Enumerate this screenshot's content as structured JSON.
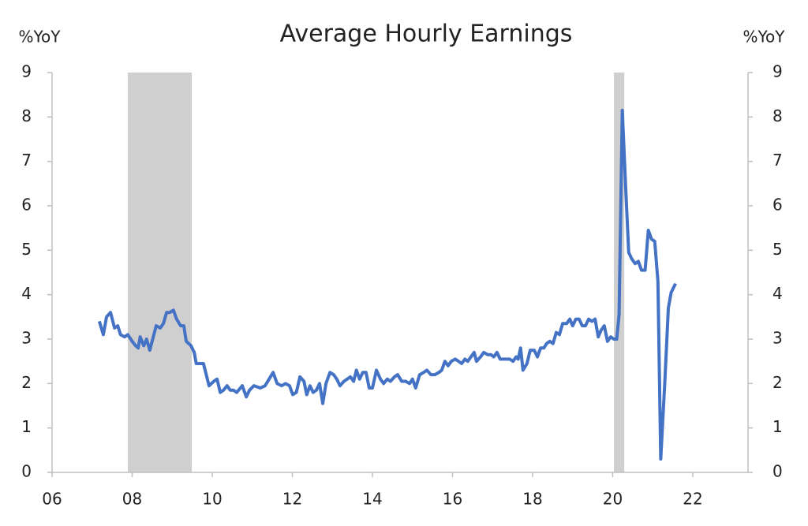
{
  "chart_data": {
    "type": "line",
    "title": "Average Hourly Earnings",
    "y_label": "%YoY",
    "y2_label": "%YoY",
    "xlim": [
      2006,
      2023.38
    ],
    "xticks": [
      {
        "value": 2006,
        "label": "06"
      },
      {
        "value": 2008,
        "label": "08"
      },
      {
        "value": 2010,
        "label": "10"
      },
      {
        "value": 2012,
        "label": "12"
      },
      {
        "value": 2014,
        "label": "14"
      },
      {
        "value": 2016,
        "label": "16"
      },
      {
        "value": 2018,
        "label": "18"
      },
      {
        "value": 2020,
        "label": "20"
      },
      {
        "value": 2022,
        "label": "22"
      }
    ],
    "ylim": [
      0,
      9
    ],
    "yticks": [
      0,
      1,
      2,
      3,
      4,
      5,
      6,
      7,
      8,
      9
    ],
    "y2lim": [
      0,
      9
    ],
    "y2ticks": [
      0,
      1,
      2,
      3,
      4,
      5,
      6,
      7,
      8,
      9
    ],
    "shaded_regions": [
      [
        2007.89,
        2009.49
      ],
      [
        2020.03,
        2020.29
      ]
    ],
    "shaded_color": "#d0cfcf",
    "x": [
      2007.18,
      2007.28,
      2007.36,
      2007.46,
      2007.56,
      2007.64,
      2007.71,
      2007.81,
      2007.89,
      2008.0,
      2008.09,
      2008.15,
      2008.2,
      2008.29,
      2008.36,
      2008.44,
      2008.6,
      2008.7,
      2008.78,
      2008.86,
      2008.94,
      2009.03,
      2009.11,
      2009.21,
      2009.29,
      2009.35,
      2009.47,
      2009.55,
      2009.6,
      2009.78,
      2009.92,
      2010.04,
      2010.12,
      2010.2,
      2010.28,
      2010.37,
      2010.45,
      2010.53,
      2010.61,
      2010.75,
      2010.85,
      2010.93,
      2011.04,
      2011.2,
      2011.32,
      2011.42,
      2011.52,
      2011.62,
      2011.73,
      2011.83,
      2011.93,
      2012.01,
      2012.1,
      2012.19,
      2012.29,
      2012.36,
      2012.44,
      2012.52,
      2012.6,
      2012.68,
      2012.76,
      2012.84,
      2012.94,
      2013.03,
      2013.11,
      2013.19,
      2013.29,
      2013.37,
      2013.45,
      2013.53,
      2013.6,
      2013.68,
      2013.76,
      2013.84,
      2013.92,
      2014.0,
      2014.1,
      2014.2,
      2014.28,
      2014.37,
      2014.45,
      2014.55,
      2014.63,
      2014.73,
      2014.83,
      2014.93,
      2015.0,
      2015.08,
      2015.18,
      2015.28,
      2015.36,
      2015.46,
      2015.56,
      2015.66,
      2015.73,
      2015.81,
      2015.89,
      2015.97,
      2016.07,
      2016.15,
      2016.23,
      2016.31,
      2016.38,
      2016.46,
      2016.54,
      2016.6,
      2016.7,
      2016.78,
      2016.88,
      2016.96,
      2017.03,
      2017.11,
      2017.19,
      2017.33,
      2017.43,
      2017.51,
      2017.59,
      2017.64,
      2017.7,
      2017.76,
      2017.86,
      2017.94,
      2018.04,
      2018.12,
      2018.2,
      2018.28,
      2018.35,
      2018.43,
      2018.51,
      2018.59,
      2018.67,
      2018.75,
      2018.85,
      2018.93,
      2019.0,
      2019.08,
      2019.16,
      2019.24,
      2019.32,
      2019.4,
      2019.48,
      2019.56,
      2019.64,
      2019.71,
      2019.79,
      2019.87,
      2019.95,
      2020.03,
      2020.1,
      2020.16,
      2020.24,
      2020.32,
      2020.4,
      2020.48,
      2020.56,
      2020.64,
      2020.72,
      2020.81,
      2020.89,
      2020.97,
      2021.05,
      2021.13,
      2021.2,
      2021.3,
      2021.39,
      2021.46,
      2021.57
    ],
    "series": [
      {
        "color": "#4472c4",
        "values": [
          3.4,
          3.1,
          3.5,
          3.6,
          3.25,
          3.3,
          3.1,
          3.05,
          3.1,
          2.95,
          2.85,
          2.8,
          3.05,
          2.85,
          3.0,
          2.75,
          3.3,
          3.25,
          3.35,
          3.6,
          3.6,
          3.65,
          3.45,
          3.3,
          3.3,
          2.95,
          2.85,
          2.7,
          2.45,
          2.45,
          1.95,
          2.05,
          2.1,
          1.8,
          1.85,
          1.95,
          1.85,
          1.85,
          1.8,
          1.95,
          1.7,
          1.85,
          1.95,
          1.9,
          1.95,
          2.1,
          2.25,
          2.0,
          1.95,
          2.0,
          1.95,
          1.75,
          1.8,
          2.15,
          2.05,
          1.75,
          1.95,
          1.8,
          1.85,
          2.0,
          1.55,
          2.0,
          2.25,
          2.2,
          2.1,
          1.95,
          2.05,
          2.1,
          2.15,
          2.05,
          2.3,
          2.1,
          2.25,
          2.25,
          1.9,
          1.9,
          2.3,
          2.1,
          2.0,
          2.1,
          2.05,
          2.15,
          2.2,
          2.05,
          2.05,
          2.0,
          2.1,
          1.9,
          2.2,
          2.25,
          2.3,
          2.2,
          2.2,
          2.25,
          2.3,
          2.5,
          2.4,
          2.5,
          2.55,
          2.5,
          2.45,
          2.55,
          2.5,
          2.6,
          2.7,
          2.5,
          2.6,
          2.7,
          2.65,
          2.65,
          2.6,
          2.7,
          2.55,
          2.55,
          2.55,
          2.5,
          2.6,
          2.55,
          2.8,
          2.3,
          2.45,
          2.75,
          2.75,
          2.6,
          2.8,
          2.8,
          2.9,
          2.95,
          2.9,
          3.15,
          3.1,
          3.35,
          3.35,
          3.45,
          3.3,
          3.45,
          3.45,
          3.3,
          3.3,
          3.45,
          3.4,
          3.45,
          3.05,
          3.2,
          3.3,
          2.95,
          3.05,
          3.0,
          3.0,
          3.55,
          8.15,
          6.5,
          4.95,
          4.8,
          4.7,
          4.75,
          4.55,
          4.55,
          5.45,
          5.25,
          5.2,
          4.3,
          0.3,
          2.0,
          3.7,
          4.05,
          4.25
        ]
      }
    ]
  }
}
